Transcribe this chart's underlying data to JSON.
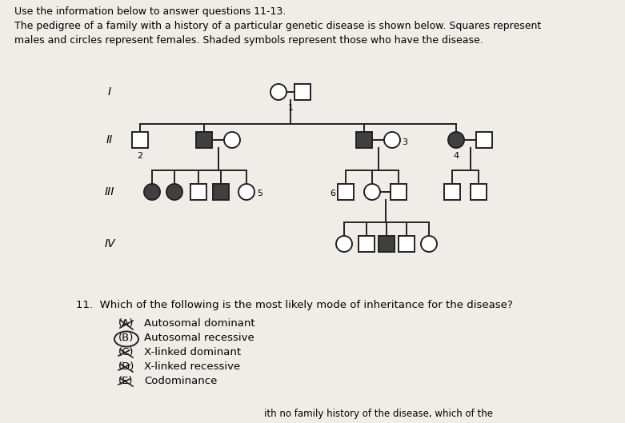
{
  "bg_color": "#f0ede8",
  "title_text": "Use the information below to answer questions 11-13.",
  "desc_line1": "The pedigree of a family with a history of a particular genetic disease is shown below. Squares represent",
  "desc_line2": "males and circles represent females. Shaded symbols represent those who have the disease.",
  "question": "11.  Which of the following is the most likely mode of inheritance for the disease?",
  "options": [
    "Autosomal dominant",
    "Autosomal recessive",
    "X-linked dominant",
    "X-linked recessive",
    "Codominance"
  ],
  "option_labels": [
    "(A)",
    "(B)",
    "(C)",
    "(D)",
    "(E)"
  ],
  "bottom_text": "ith no family history of the disease, which of the",
  "r": 10,
  "sq": 10,
  "lw": 1.4,
  "lc": "#222222",
  "fa": "#404040",
  "fu": "#ffffff",
  "sc": "#222222"
}
